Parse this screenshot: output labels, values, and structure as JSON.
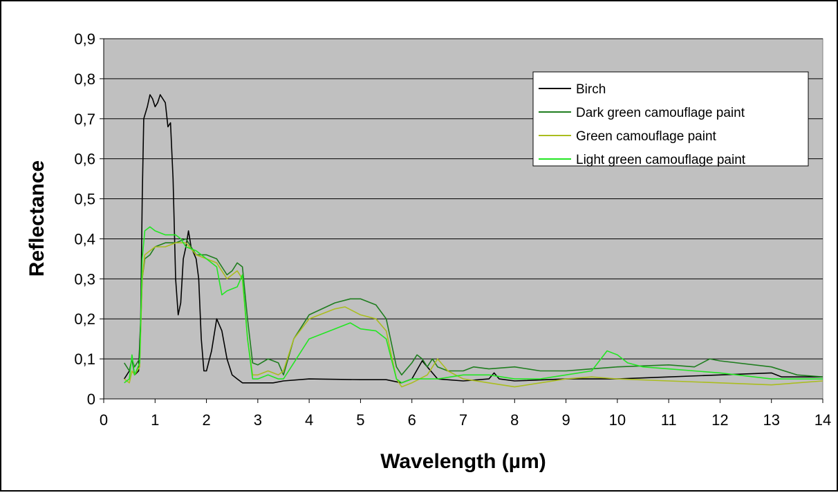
{
  "chart_data": {
    "type": "line",
    "xlabel": "Wavelength (µm)",
    "ylabel": "Reflectance",
    "xlim": [
      0,
      14
    ],
    "ylim": [
      0,
      0.9
    ],
    "x_ticks": [
      "0",
      "1",
      "2",
      "3",
      "4",
      "5",
      "6",
      "7",
      "8",
      "9",
      "10",
      "11",
      "12",
      "13",
      "14"
    ],
    "y_ticks": [
      "0",
      "0,1",
      "0,2",
      "0,3",
      "0,4",
      "0,5",
      "0,6",
      "0,7",
      "0,8",
      "0,9"
    ],
    "grid": "horizontal",
    "legend_position": "top-right",
    "plot_background": "#c0c0c0",
    "series": [
      {
        "name": "Birch",
        "color": "#000000",
        "points": [
          [
            0.4,
            0.05
          ],
          [
            0.5,
            0.07
          ],
          [
            0.55,
            0.1
          ],
          [
            0.6,
            0.06
          ],
          [
            0.68,
            0.07
          ],
          [
            0.72,
            0.2
          ],
          [
            0.75,
            0.5
          ],
          [
            0.78,
            0.7
          ],
          [
            0.85,
            0.73
          ],
          [
            0.9,
            0.76
          ],
          [
            0.95,
            0.75
          ],
          [
            1.0,
            0.73
          ],
          [
            1.05,
            0.74
          ],
          [
            1.1,
            0.76
          ],
          [
            1.2,
            0.74
          ],
          [
            1.25,
            0.68
          ],
          [
            1.3,
            0.69
          ],
          [
            1.35,
            0.55
          ],
          [
            1.4,
            0.3
          ],
          [
            1.45,
            0.21
          ],
          [
            1.5,
            0.24
          ],
          [
            1.55,
            0.35
          ],
          [
            1.6,
            0.38
          ],
          [
            1.65,
            0.42
          ],
          [
            1.7,
            0.38
          ],
          [
            1.8,
            0.35
          ],
          [
            1.85,
            0.3
          ],
          [
            1.9,
            0.15
          ],
          [
            1.95,
            0.07
          ],
          [
            2.0,
            0.07
          ],
          [
            2.1,
            0.12
          ],
          [
            2.2,
            0.2
          ],
          [
            2.3,
            0.17
          ],
          [
            2.4,
            0.1
          ],
          [
            2.5,
            0.06
          ],
          [
            2.6,
            0.05
          ],
          [
            2.7,
            0.04
          ],
          [
            3.0,
            0.04
          ],
          [
            3.3,
            0.04
          ],
          [
            3.5,
            0.045
          ],
          [
            4.0,
            0.05
          ],
          [
            5.0,
            0.048
          ],
          [
            5.5,
            0.048
          ],
          [
            5.8,
            0.04
          ],
          [
            6.0,
            0.05
          ],
          [
            6.2,
            0.095
          ],
          [
            6.3,
            0.08
          ],
          [
            6.5,
            0.05
          ],
          [
            7.0,
            0.045
          ],
          [
            7.5,
            0.05
          ],
          [
            7.6,
            0.065
          ],
          [
            7.7,
            0.05
          ],
          [
            8.0,
            0.045
          ],
          [
            9.0,
            0.05
          ],
          [
            10.0,
            0.05
          ],
          [
            11.0,
            0.055
          ],
          [
            12.0,
            0.06
          ],
          [
            13.0,
            0.065
          ],
          [
            13.2,
            0.055
          ],
          [
            14.0,
            0.055
          ]
        ]
      },
      {
        "name": "Dark green camouflage paint",
        "color": "#1e7d1e",
        "points": [
          [
            0.4,
            0.09
          ],
          [
            0.5,
            0.07
          ],
          [
            0.55,
            0.1
          ],
          [
            0.6,
            0.08
          ],
          [
            0.7,
            0.1
          ],
          [
            0.75,
            0.3
          ],
          [
            0.8,
            0.35
          ],
          [
            0.9,
            0.36
          ],
          [
            1.0,
            0.38
          ],
          [
            1.2,
            0.39
          ],
          [
            1.4,
            0.39
          ],
          [
            1.6,
            0.4
          ],
          [
            1.8,
            0.36
          ],
          [
            2.0,
            0.36
          ],
          [
            2.2,
            0.35
          ],
          [
            2.4,
            0.31
          ],
          [
            2.5,
            0.32
          ],
          [
            2.6,
            0.34
          ],
          [
            2.7,
            0.33
          ],
          [
            2.8,
            0.2
          ],
          [
            2.9,
            0.09
          ],
          [
            3.0,
            0.085
          ],
          [
            3.2,
            0.1
          ],
          [
            3.4,
            0.09
          ],
          [
            3.5,
            0.06
          ],
          [
            3.7,
            0.15
          ],
          [
            4.0,
            0.21
          ],
          [
            4.5,
            0.24
          ],
          [
            4.8,
            0.25
          ],
          [
            5.0,
            0.25
          ],
          [
            5.3,
            0.235
          ],
          [
            5.5,
            0.2
          ],
          [
            5.7,
            0.08
          ],
          [
            5.8,
            0.06
          ],
          [
            6.0,
            0.09
          ],
          [
            6.1,
            0.11
          ],
          [
            6.2,
            0.1
          ],
          [
            6.3,
            0.08
          ],
          [
            6.4,
            0.1
          ],
          [
            6.5,
            0.08
          ],
          [
            6.7,
            0.07
          ],
          [
            7.0,
            0.07
          ],
          [
            7.2,
            0.08
          ],
          [
            7.5,
            0.075
          ],
          [
            8.0,
            0.08
          ],
          [
            8.5,
            0.07
          ],
          [
            9.0,
            0.07
          ],
          [
            9.5,
            0.075
          ],
          [
            10.0,
            0.08
          ],
          [
            11.0,
            0.085
          ],
          [
            11.5,
            0.08
          ],
          [
            11.8,
            0.1
          ],
          [
            12.0,
            0.095
          ],
          [
            13.0,
            0.08
          ],
          [
            13.5,
            0.06
          ],
          [
            14.0,
            0.055
          ]
        ]
      },
      {
        "name": "Green camouflage paint",
        "color": "#aabd1e",
        "points": [
          [
            0.4,
            0.05
          ],
          [
            0.5,
            0.04
          ],
          [
            0.55,
            0.07
          ],
          [
            0.6,
            0.06
          ],
          [
            0.7,
            0.08
          ],
          [
            0.75,
            0.3
          ],
          [
            0.8,
            0.36
          ],
          [
            0.9,
            0.37
          ],
          [
            1.0,
            0.38
          ],
          [
            1.2,
            0.38
          ],
          [
            1.4,
            0.39
          ],
          [
            1.6,
            0.39
          ],
          [
            1.8,
            0.36
          ],
          [
            2.0,
            0.35
          ],
          [
            2.2,
            0.34
          ],
          [
            2.4,
            0.3
          ],
          [
            2.6,
            0.32
          ],
          [
            2.7,
            0.3
          ],
          [
            2.8,
            0.15
          ],
          [
            2.9,
            0.06
          ],
          [
            3.0,
            0.06
          ],
          [
            3.2,
            0.07
          ],
          [
            3.4,
            0.06
          ],
          [
            3.5,
            0.07
          ],
          [
            3.7,
            0.15
          ],
          [
            4.0,
            0.2
          ],
          [
            4.5,
            0.225
          ],
          [
            4.7,
            0.23
          ],
          [
            5.0,
            0.21
          ],
          [
            5.3,
            0.2
          ],
          [
            5.5,
            0.17
          ],
          [
            5.7,
            0.05
          ],
          [
            5.8,
            0.03
          ],
          [
            6.0,
            0.04
          ],
          [
            6.3,
            0.06
          ],
          [
            6.5,
            0.1
          ],
          [
            6.7,
            0.07
          ],
          [
            7.0,
            0.05
          ],
          [
            7.5,
            0.04
          ],
          [
            8.0,
            0.03
          ],
          [
            9.0,
            0.05
          ],
          [
            9.5,
            0.055
          ],
          [
            10.0,
            0.05
          ],
          [
            11.0,
            0.045
          ],
          [
            12.0,
            0.04
          ],
          [
            13.0,
            0.035
          ],
          [
            14.0,
            0.045
          ]
        ]
      },
      {
        "name": "Light green camouflage paint",
        "color": "#22e622",
        "points": [
          [
            0.4,
            0.04
          ],
          [
            0.5,
            0.05
          ],
          [
            0.55,
            0.11
          ],
          [
            0.6,
            0.06
          ],
          [
            0.7,
            0.09
          ],
          [
            0.75,
            0.35
          ],
          [
            0.8,
            0.42
          ],
          [
            0.9,
            0.43
          ],
          [
            1.0,
            0.42
          ],
          [
            1.2,
            0.41
          ],
          [
            1.4,
            0.41
          ],
          [
            1.5,
            0.4
          ],
          [
            1.6,
            0.38
          ],
          [
            1.8,
            0.37
          ],
          [
            2.0,
            0.35
          ],
          [
            2.2,
            0.33
          ],
          [
            2.3,
            0.26
          ],
          [
            2.4,
            0.27
          ],
          [
            2.6,
            0.28
          ],
          [
            2.7,
            0.31
          ],
          [
            2.8,
            0.15
          ],
          [
            2.9,
            0.05
          ],
          [
            3.0,
            0.05
          ],
          [
            3.2,
            0.06
          ],
          [
            3.4,
            0.05
          ],
          [
            3.5,
            0.05
          ],
          [
            3.7,
            0.09
          ],
          [
            4.0,
            0.15
          ],
          [
            4.5,
            0.175
          ],
          [
            4.8,
            0.19
          ],
          [
            5.0,
            0.175
          ],
          [
            5.3,
            0.17
          ],
          [
            5.5,
            0.15
          ],
          [
            5.7,
            0.05
          ],
          [
            5.8,
            0.04
          ],
          [
            6.0,
            0.05
          ],
          [
            6.5,
            0.05
          ],
          [
            7.0,
            0.06
          ],
          [
            7.5,
            0.06
          ],
          [
            8.0,
            0.05
          ],
          [
            8.5,
            0.05
          ],
          [
            9.0,
            0.06
          ],
          [
            9.5,
            0.07
          ],
          [
            9.8,
            0.12
          ],
          [
            10.0,
            0.11
          ],
          [
            10.2,
            0.09
          ],
          [
            10.5,
            0.08
          ],
          [
            11.0,
            0.075
          ],
          [
            11.5,
            0.07
          ],
          [
            12.0,
            0.065
          ],
          [
            13.0,
            0.05
          ],
          [
            14.0,
            0.05
          ]
        ]
      }
    ]
  }
}
